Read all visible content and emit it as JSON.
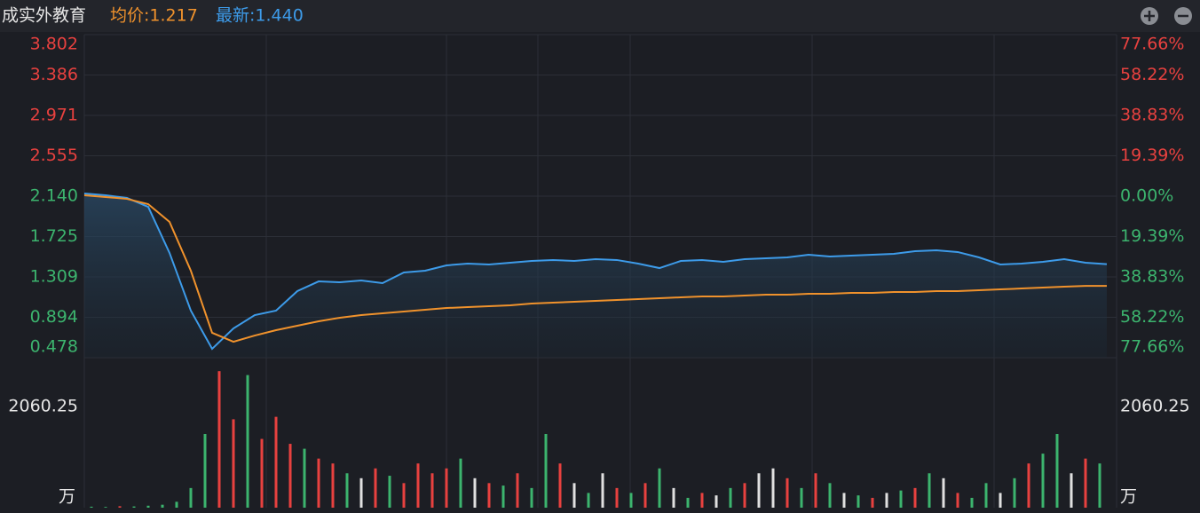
{
  "header": {
    "title": "成实外教育",
    "avg": "均价:1.217",
    "last": "最新:1.440"
  },
  "chart_data": [
    {
      "type": "line",
      "ylim": [
        0.478,
        3.802
      ],
      "yticks": [
        {
          "value": 3.802,
          "label": "3.802"
        },
        {
          "value": 3.386,
          "label": "3.386"
        },
        {
          "value": 2.971,
          "label": "2.971"
        },
        {
          "value": 2.555,
          "label": "2.555"
        },
        {
          "value": 2.14,
          "label": "2.140"
        },
        {
          "value": 1.725,
          "label": "1.725"
        },
        {
          "value": 1.309,
          "label": "1.309"
        },
        {
          "value": 0.894,
          "label": "0.894"
        },
        {
          "value": 0.478,
          "label": "0.478"
        }
      ],
      "y2lim": [
        -77.66,
        77.66
      ],
      "y2ticks": [
        {
          "value": 77.66,
          "label": "77.66%"
        },
        {
          "value": 58.22,
          "label": "58.22%"
        },
        {
          "value": 38.83,
          "label": "38.83%"
        },
        {
          "value": 19.39,
          "label": "19.39%"
        },
        {
          "value": 0,
          "label": "0.00%"
        },
        {
          "value": -19.39,
          "label": "19.39%"
        },
        {
          "value": -38.83,
          "label": "38.83%"
        },
        {
          "value": -58.22,
          "label": "58.22%"
        },
        {
          "value": -77.66,
          "label": "77.66%"
        }
      ],
      "up_color": "#e8413f",
      "down_color": "#3cb46e",
      "series": [
        {
          "color": "#3d9be9",
          "values": [
            2.167,
            2.149,
            2.122,
            2.03,
            1.556,
            0.962,
            0.569,
            0.779,
            0.916,
            0.962,
            1.163,
            1.263,
            1.254,
            1.272,
            1.245,
            1.355,
            1.373,
            1.428,
            1.446,
            1.437,
            1.455,
            1.473,
            1.483,
            1.473,
            1.492,
            1.483,
            1.446,
            1.4,
            1.473,
            1.483,
            1.464,
            1.492,
            1.501,
            1.51,
            1.537,
            1.519,
            1.528,
            1.537,
            1.546,
            1.574,
            1.583,
            1.565,
            1.51,
            1.437,
            1.446,
            1.464,
            1.492,
            1.455,
            1.44
          ]
        },
        {
          "color": "#f0922c",
          "values": [
            2.149,
            2.131,
            2.112,
            2.058,
            1.875,
            1.373,
            0.734,
            0.642,
            0.706,
            0.761,
            0.807,
            0.852,
            0.889,
            0.916,
            0.935,
            0.953,
            0.971,
            0.989,
            0.999,
            1.008,
            1.017,
            1.035,
            1.044,
            1.053,
            1.062,
            1.072,
            1.081,
            1.09,
            1.099,
            1.108,
            1.108,
            1.117,
            1.126,
            1.126,
            1.136,
            1.136,
            1.145,
            1.145,
            1.154,
            1.154,
            1.163,
            1.163,
            1.172,
            1.181,
            1.19,
            1.199,
            1.209,
            1.217,
            1.217
          ]
        }
      ]
    },
    {
      "type": "bar",
      "unit": "万",
      "ylim": [
        0,
        3018
      ],
      "yticks": [
        2060.25
      ],
      "values": [
        20,
        15,
        30,
        25,
        40,
        60,
        120,
        400,
        1500,
        2780,
        1800,
        2700,
        1400,
        1850,
        1300,
        1200,
        1000,
        900,
        700,
        600,
        800,
        650,
        500,
        900,
        700,
        800,
        1000,
        600,
        500,
        450,
        700,
        400,
        1500,
        900,
        500,
        300,
        700,
        400,
        300,
        500,
        800,
        400,
        200,
        300,
        250,
        400,
        500,
        700,
        800,
        600,
        400,
        700,
        500,
        300,
        250,
        200,
        300,
        350,
        400,
        700,
        600,
        300,
        200,
        500,
        300,
        600,
        900,
        1100,
        1500,
        700,
        1000,
        900
      ],
      "colors": [
        "#3cb46e",
        "#3cb46e",
        "#e8413f",
        "#3cb46e",
        "#3cb46e",
        "#3cb46e",
        "#3cb46e",
        "#3cb46e",
        "#3cb46e",
        "#e8413f",
        "#e8413f",
        "#3cb46e",
        "#e8413f",
        "#e8413f",
        "#e8413f",
        "#3cb46e",
        "#e8413f",
        "#e8413f",
        "#3cb46e",
        "#e0e0e0",
        "#e8413f",
        "#3cb46e",
        "#e8413f",
        "#e8413f",
        "#e8413f",
        "#e8413f",
        "#3cb46e",
        "#e0e0e0",
        "#e8413f",
        "#3cb46e",
        "#e8413f",
        "#3cb46e",
        "#3cb46e",
        "#e8413f",
        "#e0e0e0",
        "#3cb46e",
        "#e0e0e0",
        "#e8413f",
        "#3cb46e",
        "#e8413f",
        "#3cb46e",
        "#e0e0e0",
        "#3cb46e",
        "#e8413f",
        "#e0e0e0",
        "#3cb46e",
        "#e8413f",
        "#e0e0e0",
        "#e0e0e0",
        "#e8413f",
        "#3cb46e",
        "#e8413f",
        "#3cb46e",
        "#e0e0e0",
        "#3cb46e",
        "#e8413f",
        "#e0e0e0",
        "#3cb46e",
        "#e8413f",
        "#3cb46e",
        "#e0e0e0",
        "#e8413f",
        "#3cb46e",
        "#3cb46e",
        "#e0e0e0",
        "#3cb46e",
        "#e8413f",
        "#3cb46e",
        "#3cb46e",
        "#e0e0e0",
        "#e8413f",
        "#3cb46e"
      ]
    }
  ]
}
